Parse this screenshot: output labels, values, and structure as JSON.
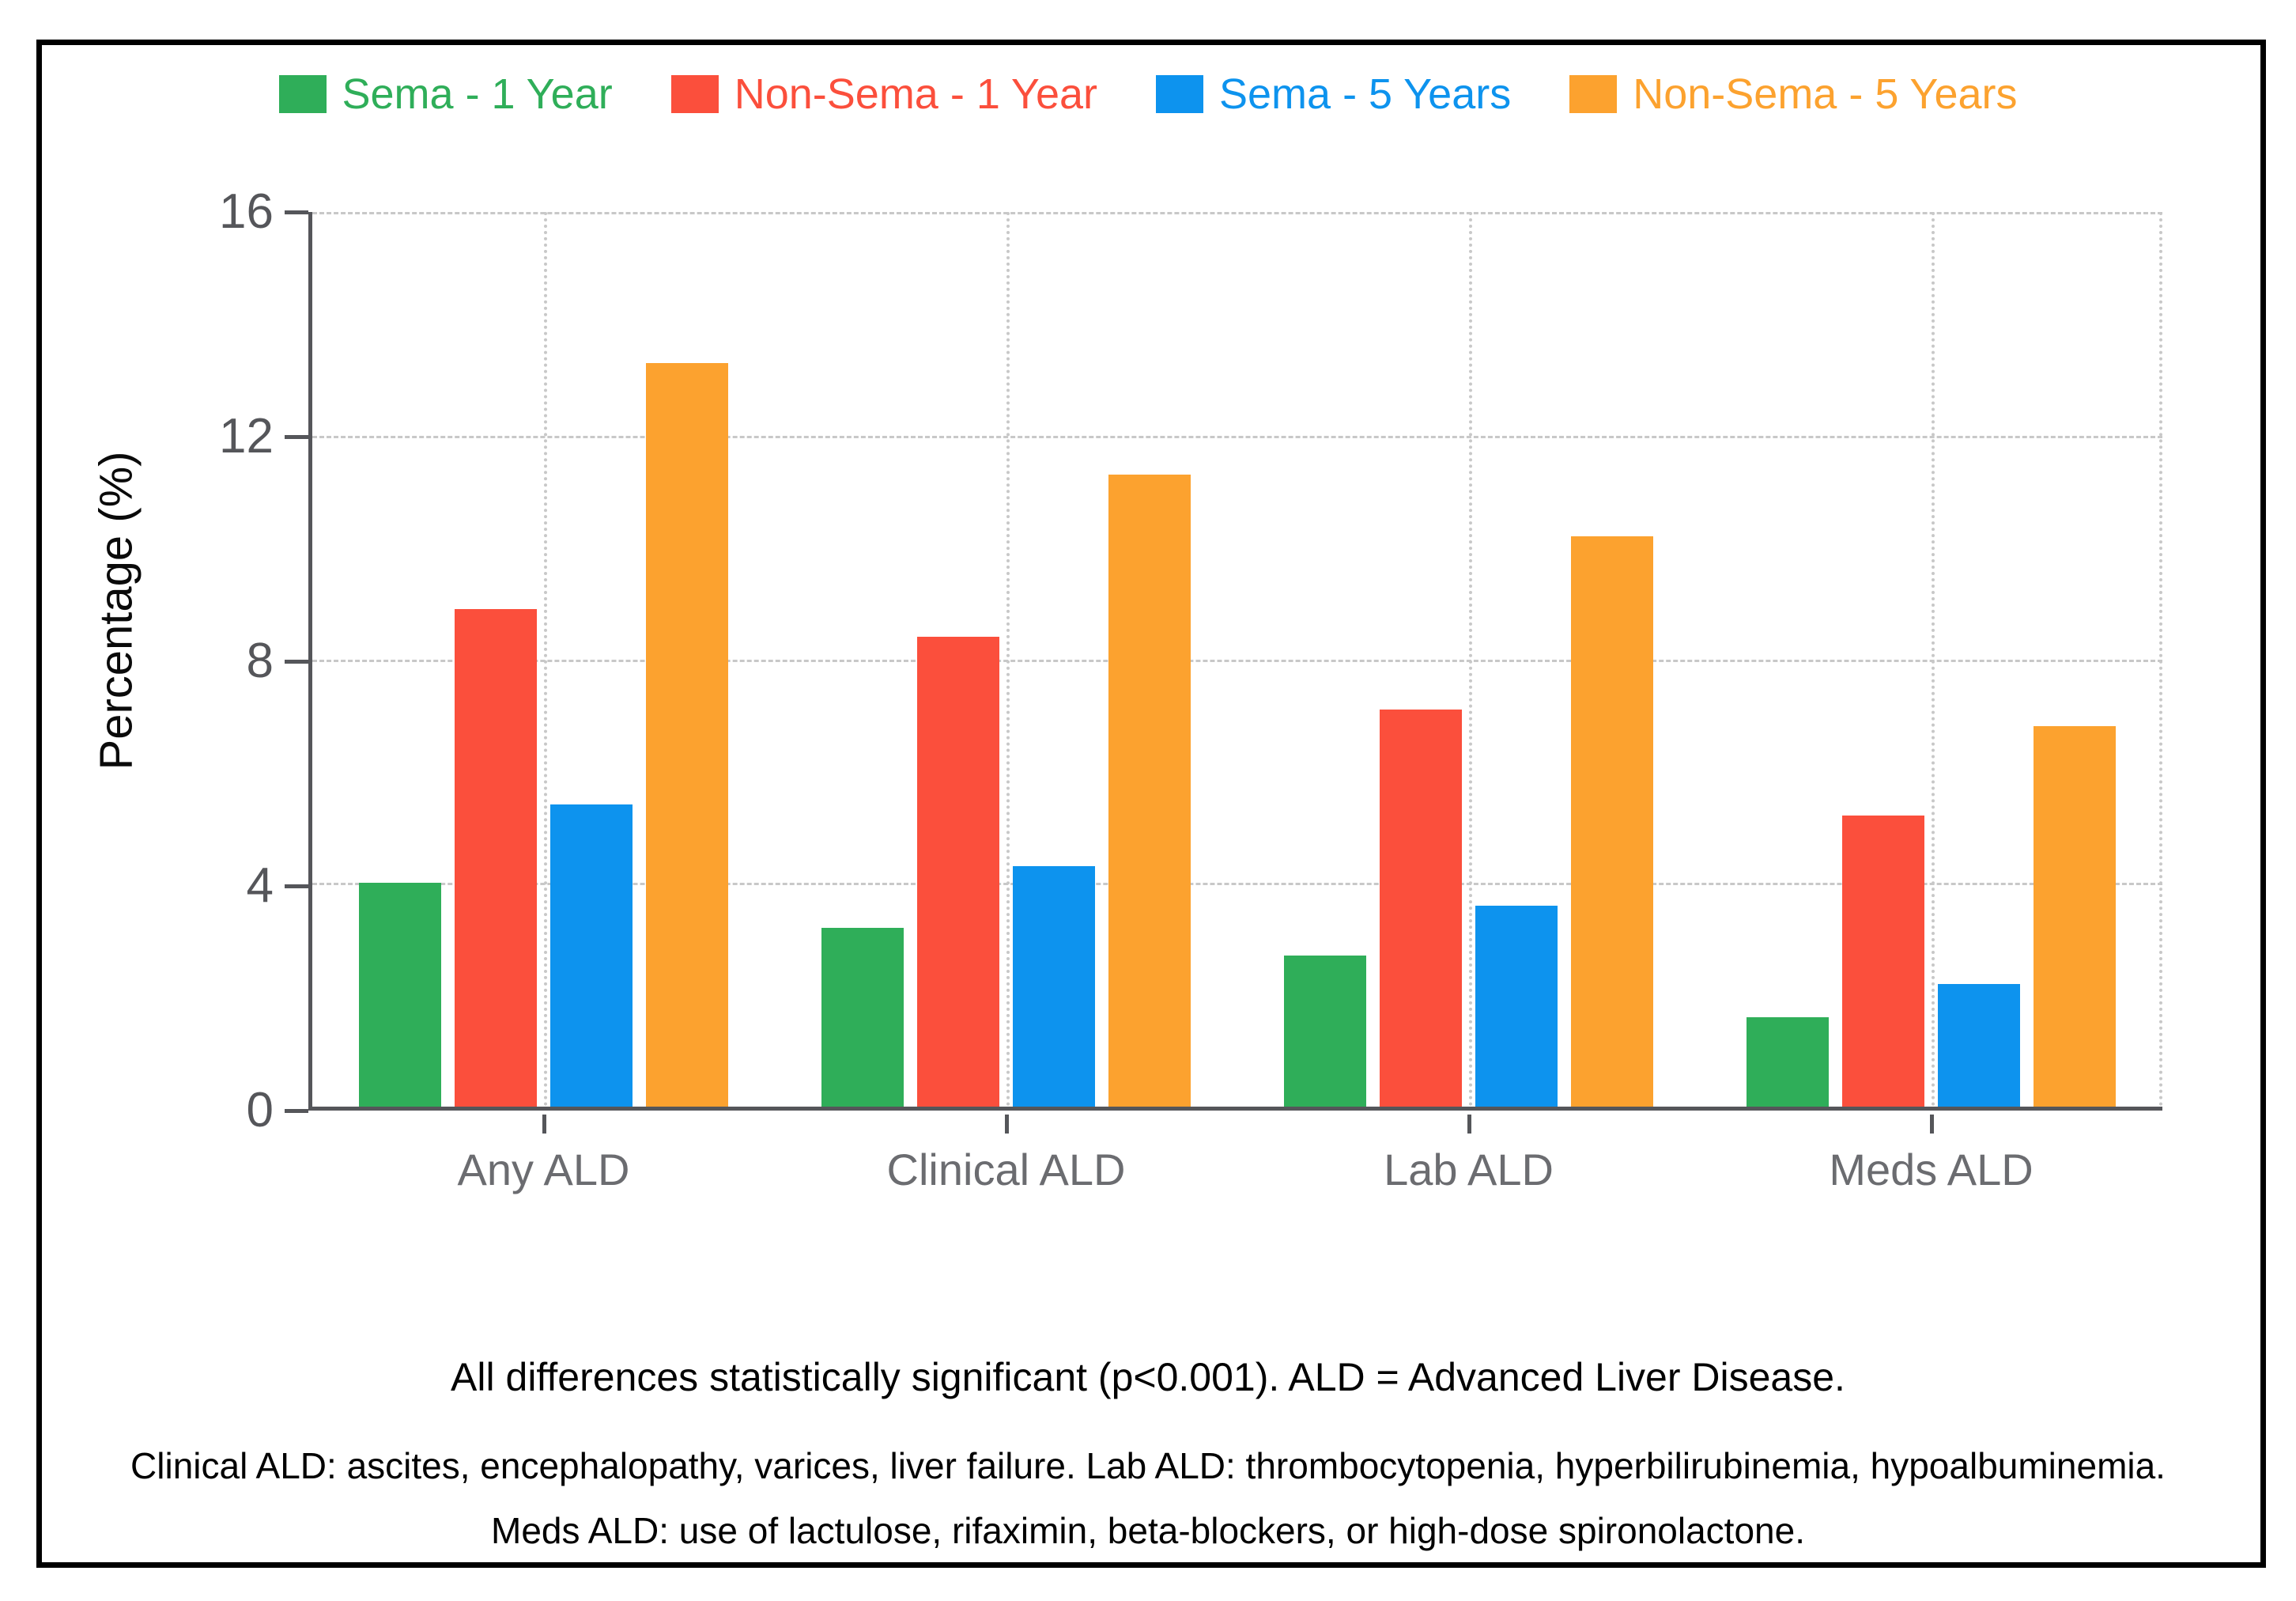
{
  "chart_data": {
    "type": "bar",
    "title": "",
    "categories": [
      "Any ALD",
      "Clinical ALD",
      "Lab ALD",
      "Meds ALD"
    ],
    "series": [
      {
        "name": "Sema - 1 Year",
        "color": "#2fae59",
        "values": [
          4.0,
          3.2,
          2.7,
          1.6
        ]
      },
      {
        "name": "Non-Sema - 1 Year",
        "color": "#fb4f3c",
        "values": [
          8.9,
          8.4,
          7.1,
          5.2
        ]
      },
      {
        "name": "Sema - 5 Years",
        "color": "#0d93ee",
        "values": [
          5.4,
          4.3,
          3.6,
          2.2
        ]
      },
      {
        "name": "Non-Sema - 5 Years",
        "color": "#fca22f",
        "values": [
          13.3,
          11.3,
          10.2,
          6.8
        ]
      }
    ],
    "xlabel": "",
    "ylabel": "Percentage (%)",
    "ylim": [
      0,
      16
    ],
    "yticks": [
      0,
      4,
      8,
      12,
      16
    ],
    "unit": "%",
    "grid": true,
    "legend_position": "top"
  },
  "colors": {
    "frame_border": "#000000",
    "axis": "#55565a",
    "gridline": "#c8c8c8",
    "tick_label": "#55565a",
    "category_label": "#6b6c70",
    "footnote_text": "#000000"
  },
  "footnotes": {
    "line1": "All differences statistically significant (p<0.001). ALD = Advanced Liver Disease.",
    "line2": "Clinical ALD: ascites, encephalopathy, varices, liver failure. Lab ALD: thrombocytopenia, hyperbilirubinemia, hypoalbuminemia.",
    "line3": "Meds ALD: use of lactulose, rifaximin, beta-blockers, or high-dose spironolactone."
  }
}
